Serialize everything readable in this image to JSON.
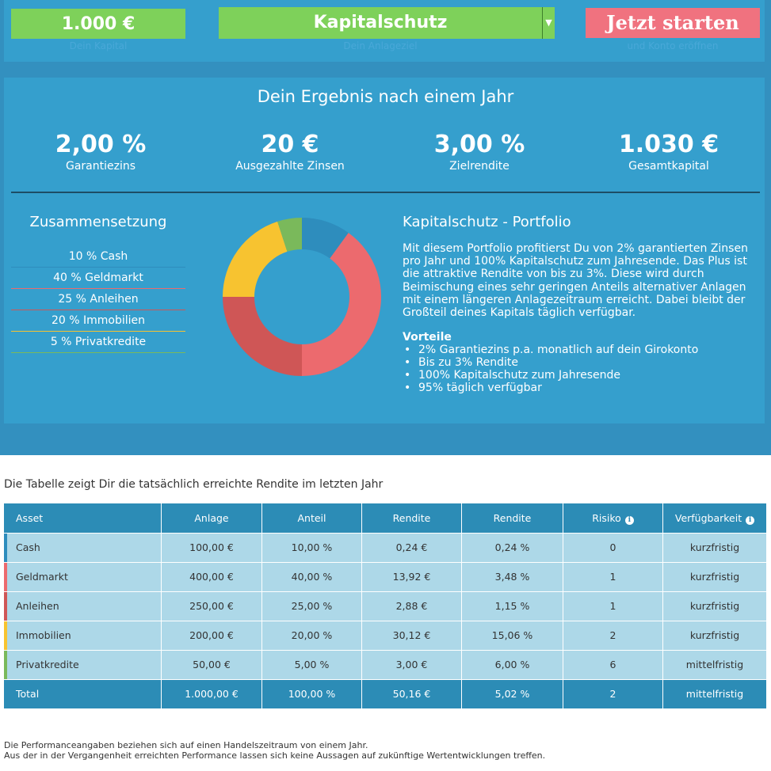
{
  "controls": {
    "amount": {
      "value": "1.000 €",
      "label": "Dein Kapital"
    },
    "goal": {
      "value": "Kapitalschutz",
      "label": "Dein Anlageziel"
    },
    "start": {
      "label": "Jetzt starten",
      "sublabel": "und Konto eröffnen"
    }
  },
  "result": {
    "title": "Dein Ergebnis nach einem Jahr",
    "stats": [
      {
        "value": "2,00 %",
        "label": "Garantiezins"
      },
      {
        "value": "20 €",
        "label": "Ausgezahlte Zinsen"
      },
      {
        "value": "3,00 %",
        "label": "Zielrendite"
      },
      {
        "value": "1.030 €",
        "label": "Gesamtkapital"
      }
    ]
  },
  "composition": {
    "title": "Zusammensetzung",
    "items": [
      {
        "label": "10 % Cash",
        "share": 10,
        "color": "#2e8dbd"
      },
      {
        "label": "40 % Geldmarkt",
        "share": 40,
        "color": "#ec6a6e"
      },
      {
        "label": "25 % Anleihen",
        "share": 25,
        "color": "#cf5656"
      },
      {
        "label": "20 % Immobilien",
        "share": 20,
        "color": "#f7c330"
      },
      {
        "label": "5 % Privatkredite",
        "share": 5,
        "color": "#7ab95b"
      }
    ]
  },
  "portfolio": {
    "title": "Kapitalschutz - Portfolio",
    "description": "Mit diesem Portfolio profitierst Du von 2% garantierten Zinsen pro Jahr und 100% Kapitalschutz zum Jahresende. Das Plus ist die attraktive Rendite von bis zu 3%. Diese wird durch Beimischung eines sehr geringen Anteils alternativer Anlagen mit einem längeren Anlagezeitraum erreicht. Dabei bleibt der Großteil deines Kapitals täglich verfügbar.",
    "advantages_title": "Vorteile",
    "advantages": [
      "2% Garantiezins p.a. monatlich auf dein Girokonto",
      "Bis zu 3% Rendite",
      "100% Kapitalschutz zum Jahresende",
      "95% täglich verfügbar"
    ]
  },
  "table": {
    "intro": "Die Tabelle zeigt Dir die tatsächlich erreichte Rendite im letzten Jahr",
    "headers": [
      "Asset",
      "Anlage",
      "Anteil",
      "Rendite",
      "Rendite",
      "Risiko",
      "Verfügbarkeit"
    ],
    "rows": [
      {
        "cells": [
          "Cash",
          "100,00 €",
          "10,00 %",
          "0,24 €",
          "0,24 %",
          "0",
          "kurzfristig"
        ],
        "color": "#2e8dbd"
      },
      {
        "cells": [
          "Geldmarkt",
          "400,00 €",
          "40,00 %",
          "13,92 €",
          "3,48 %",
          "1",
          "kurzfristig"
        ],
        "color": "#ec6a6e"
      },
      {
        "cells": [
          "Anleihen",
          "250,00 €",
          "25,00 %",
          "2,88 €",
          "1,15 %",
          "1",
          "kurzfristig"
        ],
        "color": "#cf5656"
      },
      {
        "cells": [
          "Immobilien",
          "200,00 €",
          "20,00 %",
          "30,12 €",
          "15,06 %",
          "2",
          "kurzfristig"
        ],
        "color": "#f7c330"
      },
      {
        "cells": [
          "Privatkredite",
          "50,00 €",
          "5,00 %",
          "3,00 €",
          "6,00 %",
          "6",
          "mittelfristig"
        ],
        "color": "#7ab95b"
      }
    ],
    "total": [
      "Total",
      "1.000,00 €",
      "100,00 %",
      "50,16 €",
      "5,02 %",
      "2",
      "mittelfristig"
    ]
  },
  "footnote": {
    "line1": "Die Performanceangaben beziehen sich auf einen Handelszeitraum von einem Jahr.",
    "line2": "Aus der in der Vergangenheit erreichten Performance lassen sich keine Aussagen auf zukünftige Wertentwicklungen treffen."
  }
}
